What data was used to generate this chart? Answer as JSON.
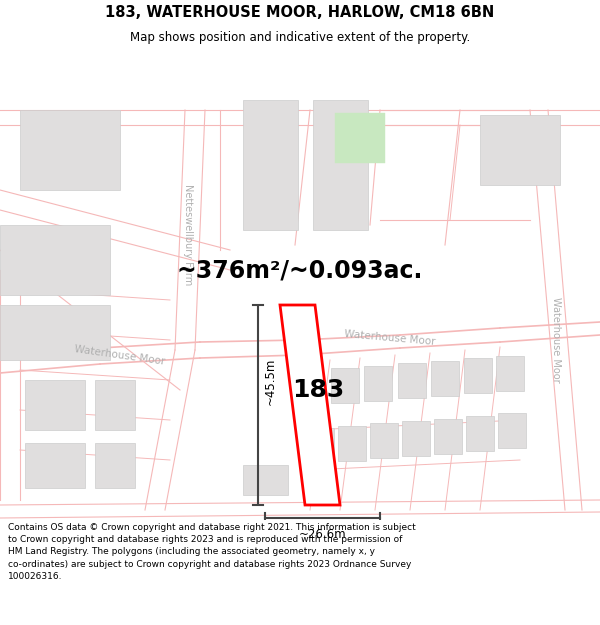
{
  "title": "183, WATERHOUSE MOOR, HARLOW, CM18 6BN",
  "subtitle": "Map shows position and indicative extent of the property.",
  "area_text": "~376m²/~0.093ac.",
  "label_183": "183",
  "dim_width": "~26.6m",
  "dim_height": "~45.5m",
  "footer_line1": "Contains OS data © Crown copyright and database right 2021. This information is subject",
  "footer_line2": "to Crown copyright and database rights 2023 and is reproduced with the permission of",
  "footer_line3": "HM Land Registry. The polygons (including the associated geometry, namely x, y",
  "footer_line4": "co-ordinates) are subject to Crown copyright and database rights 2023 Ordnance Survey",
  "footer_line5": "100026316.",
  "map_bg": "#f7f6f6",
  "road_color": "#f5b8b8",
  "building_color": "#e0dede",
  "building_edge": "#cccccc",
  "plot_outline_color": "#ff0000",
  "plot_fill_color": "#ffffff",
  "dim_line_color": "#444444",
  "street_label_color": "#b0b0b0",
  "green_fill": "#c8e8c0",
  "title_fontsize": 10.5,
  "subtitle_fontsize": 8.5,
  "area_text_fontsize": 17,
  "label_fontsize": 18,
  "footer_fontsize": 6.5
}
